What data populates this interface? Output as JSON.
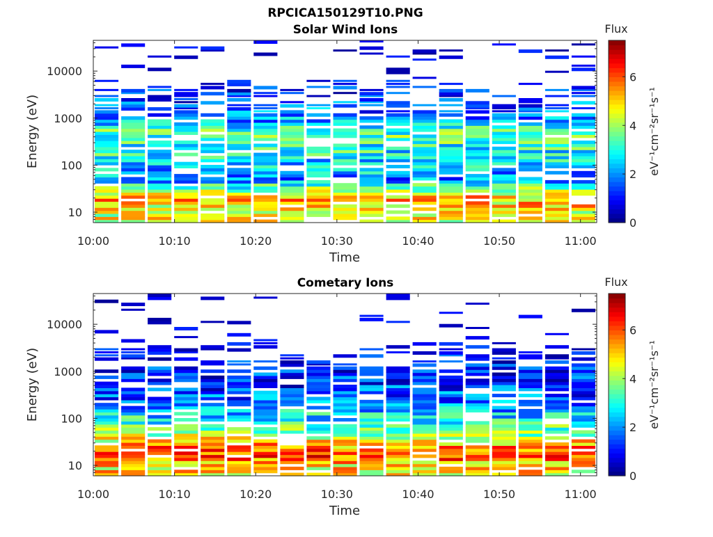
{
  "figure_title": "RPCICA150129T10.PNG",
  "chart_data": [
    {
      "type": "heatmap",
      "title": "Solar Wind Ions",
      "xlabel": "Time",
      "ylabel": "Energy (eV)",
      "y_scale": "log",
      "xlim": [
        "10:00",
        "11:02"
      ],
      "ylim": [
        6,
        45000
      ],
      "x_tick_labels": [
        "10:00",
        "10:10",
        "10:20",
        "10:30",
        "10:40",
        "10:50",
        "11:00"
      ],
      "y_tick_labels": [
        "10",
        "100",
        "1000",
        "10000"
      ],
      "colorbar": {
        "label": "Flux",
        "unit": "eV⁻¹cm⁻²sr⁻¹s⁻¹",
        "range": [
          0,
          7.5
        ],
        "tick_labels": [
          "0",
          "2",
          "4",
          "6"
        ],
        "colormap": "jet"
      },
      "time_columns": 19,
      "approx_flux_by_energy": [
        {
          "energy_eV": 10,
          "flux": 4.5
        },
        {
          "energy_eV": 20,
          "flux": 5.2
        },
        {
          "energy_eV": 50,
          "flux": 2.0
        },
        {
          "energy_eV": 100,
          "flux": 2.5
        },
        {
          "energy_eV": 300,
          "flux": 3.2
        },
        {
          "energy_eV": 500,
          "flux": 3.5
        },
        {
          "energy_eV": 1000,
          "flux": 2.0
        },
        {
          "energy_eV": 2000,
          "flux": 1.5
        },
        {
          "energy_eV": 10000,
          "flux": 0.2
        },
        {
          "energy_eV": 30000,
          "flux": 0.1
        }
      ]
    },
    {
      "type": "heatmap",
      "title": "Cometary Ions",
      "xlabel": "Time",
      "ylabel": "Energy (eV)",
      "y_scale": "log",
      "xlim": [
        "10:00",
        "11:02"
      ],
      "ylim": [
        6,
        45000
      ],
      "x_tick_labels": [
        "10:00",
        "10:10",
        "10:20",
        "10:30",
        "10:40",
        "10:50",
        "11:00"
      ],
      "y_tick_labels": [
        "10",
        "100",
        "1000",
        "10000"
      ],
      "colorbar": {
        "label": "Flux",
        "unit": "eV⁻¹cm⁻²sr⁻¹s⁻¹",
        "range": [
          0,
          7.5
        ],
        "tick_labels": [
          "0",
          "2",
          "4",
          "6"
        ],
        "colormap": "jet"
      },
      "time_columns": 19,
      "approx_flux_by_energy": [
        {
          "energy_eV": 10,
          "flux": 4.8
        },
        {
          "energy_eV": 15,
          "flux": 6.0
        },
        {
          "energy_eV": 25,
          "flux": 5.5
        },
        {
          "energy_eV": 50,
          "flux": 3.8
        },
        {
          "energy_eV": 100,
          "flux": 2.8
        },
        {
          "energy_eV": 300,
          "flux": 1.5
        },
        {
          "energy_eV": 1000,
          "flux": 1.0
        },
        {
          "energy_eV": 2000,
          "flux": 0.8
        },
        {
          "energy_eV": 5000,
          "flux": 0.1
        },
        {
          "energy_eV": 13000,
          "flux": 0.1
        }
      ]
    }
  ]
}
